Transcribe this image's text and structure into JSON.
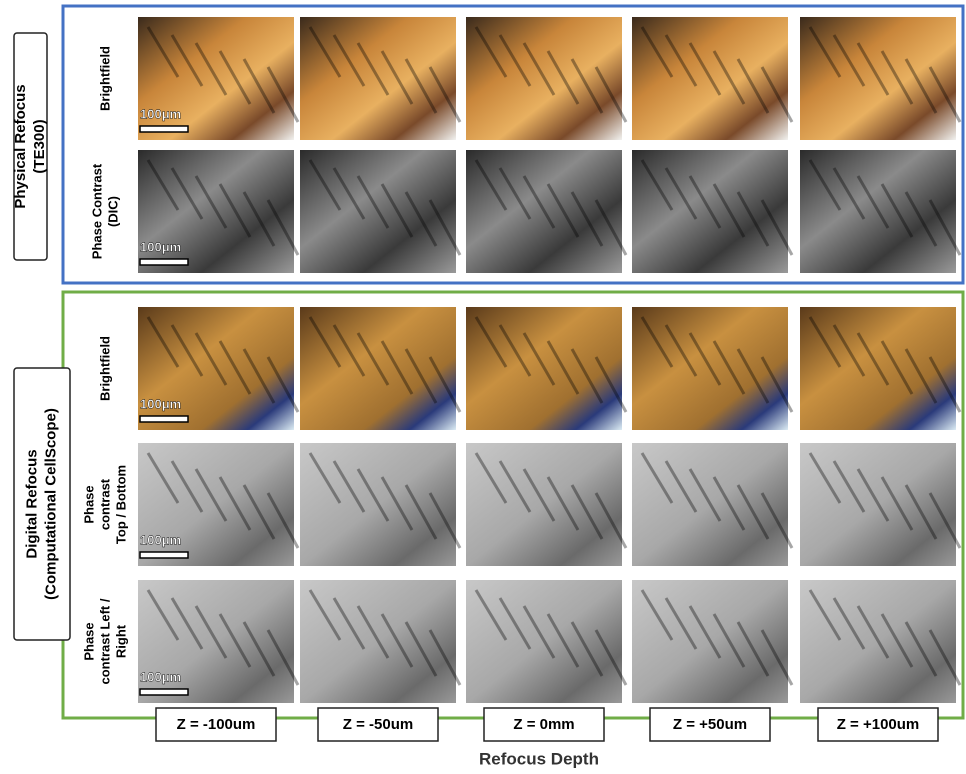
{
  "panels": [
    {
      "label": [
        "Physical Refocus",
        "(TE300)"
      ],
      "rows": [
        {
          "label": [
            "Brightfield"
          ],
          "scale_bar": "100μm"
        },
        {
          "label": [
            "Phase Contrast",
            "(DIC)"
          ],
          "scale_bar": "100μm"
        }
      ]
    },
    {
      "label": [
        "Digital Refocus",
        "(Computational CellScope)"
      ],
      "rows": [
        {
          "label": [
            "Brightfield"
          ],
          "scale_bar": "100μm"
        },
        {
          "label": [
            "Phase",
            "contrast",
            "Top / Bottom"
          ],
          "scale_bar": "100μm"
        },
        {
          "label": [
            "Phase",
            "contrast Left /",
            "Right"
          ],
          "scale_bar": "100μm"
        }
      ]
    }
  ],
  "columns": [
    "Z = -100um",
    "Z = -50um",
    "Z = 0mm",
    "Z = +50um",
    "Z = +100um"
  ],
  "axis_label": "Refocus Depth"
}
